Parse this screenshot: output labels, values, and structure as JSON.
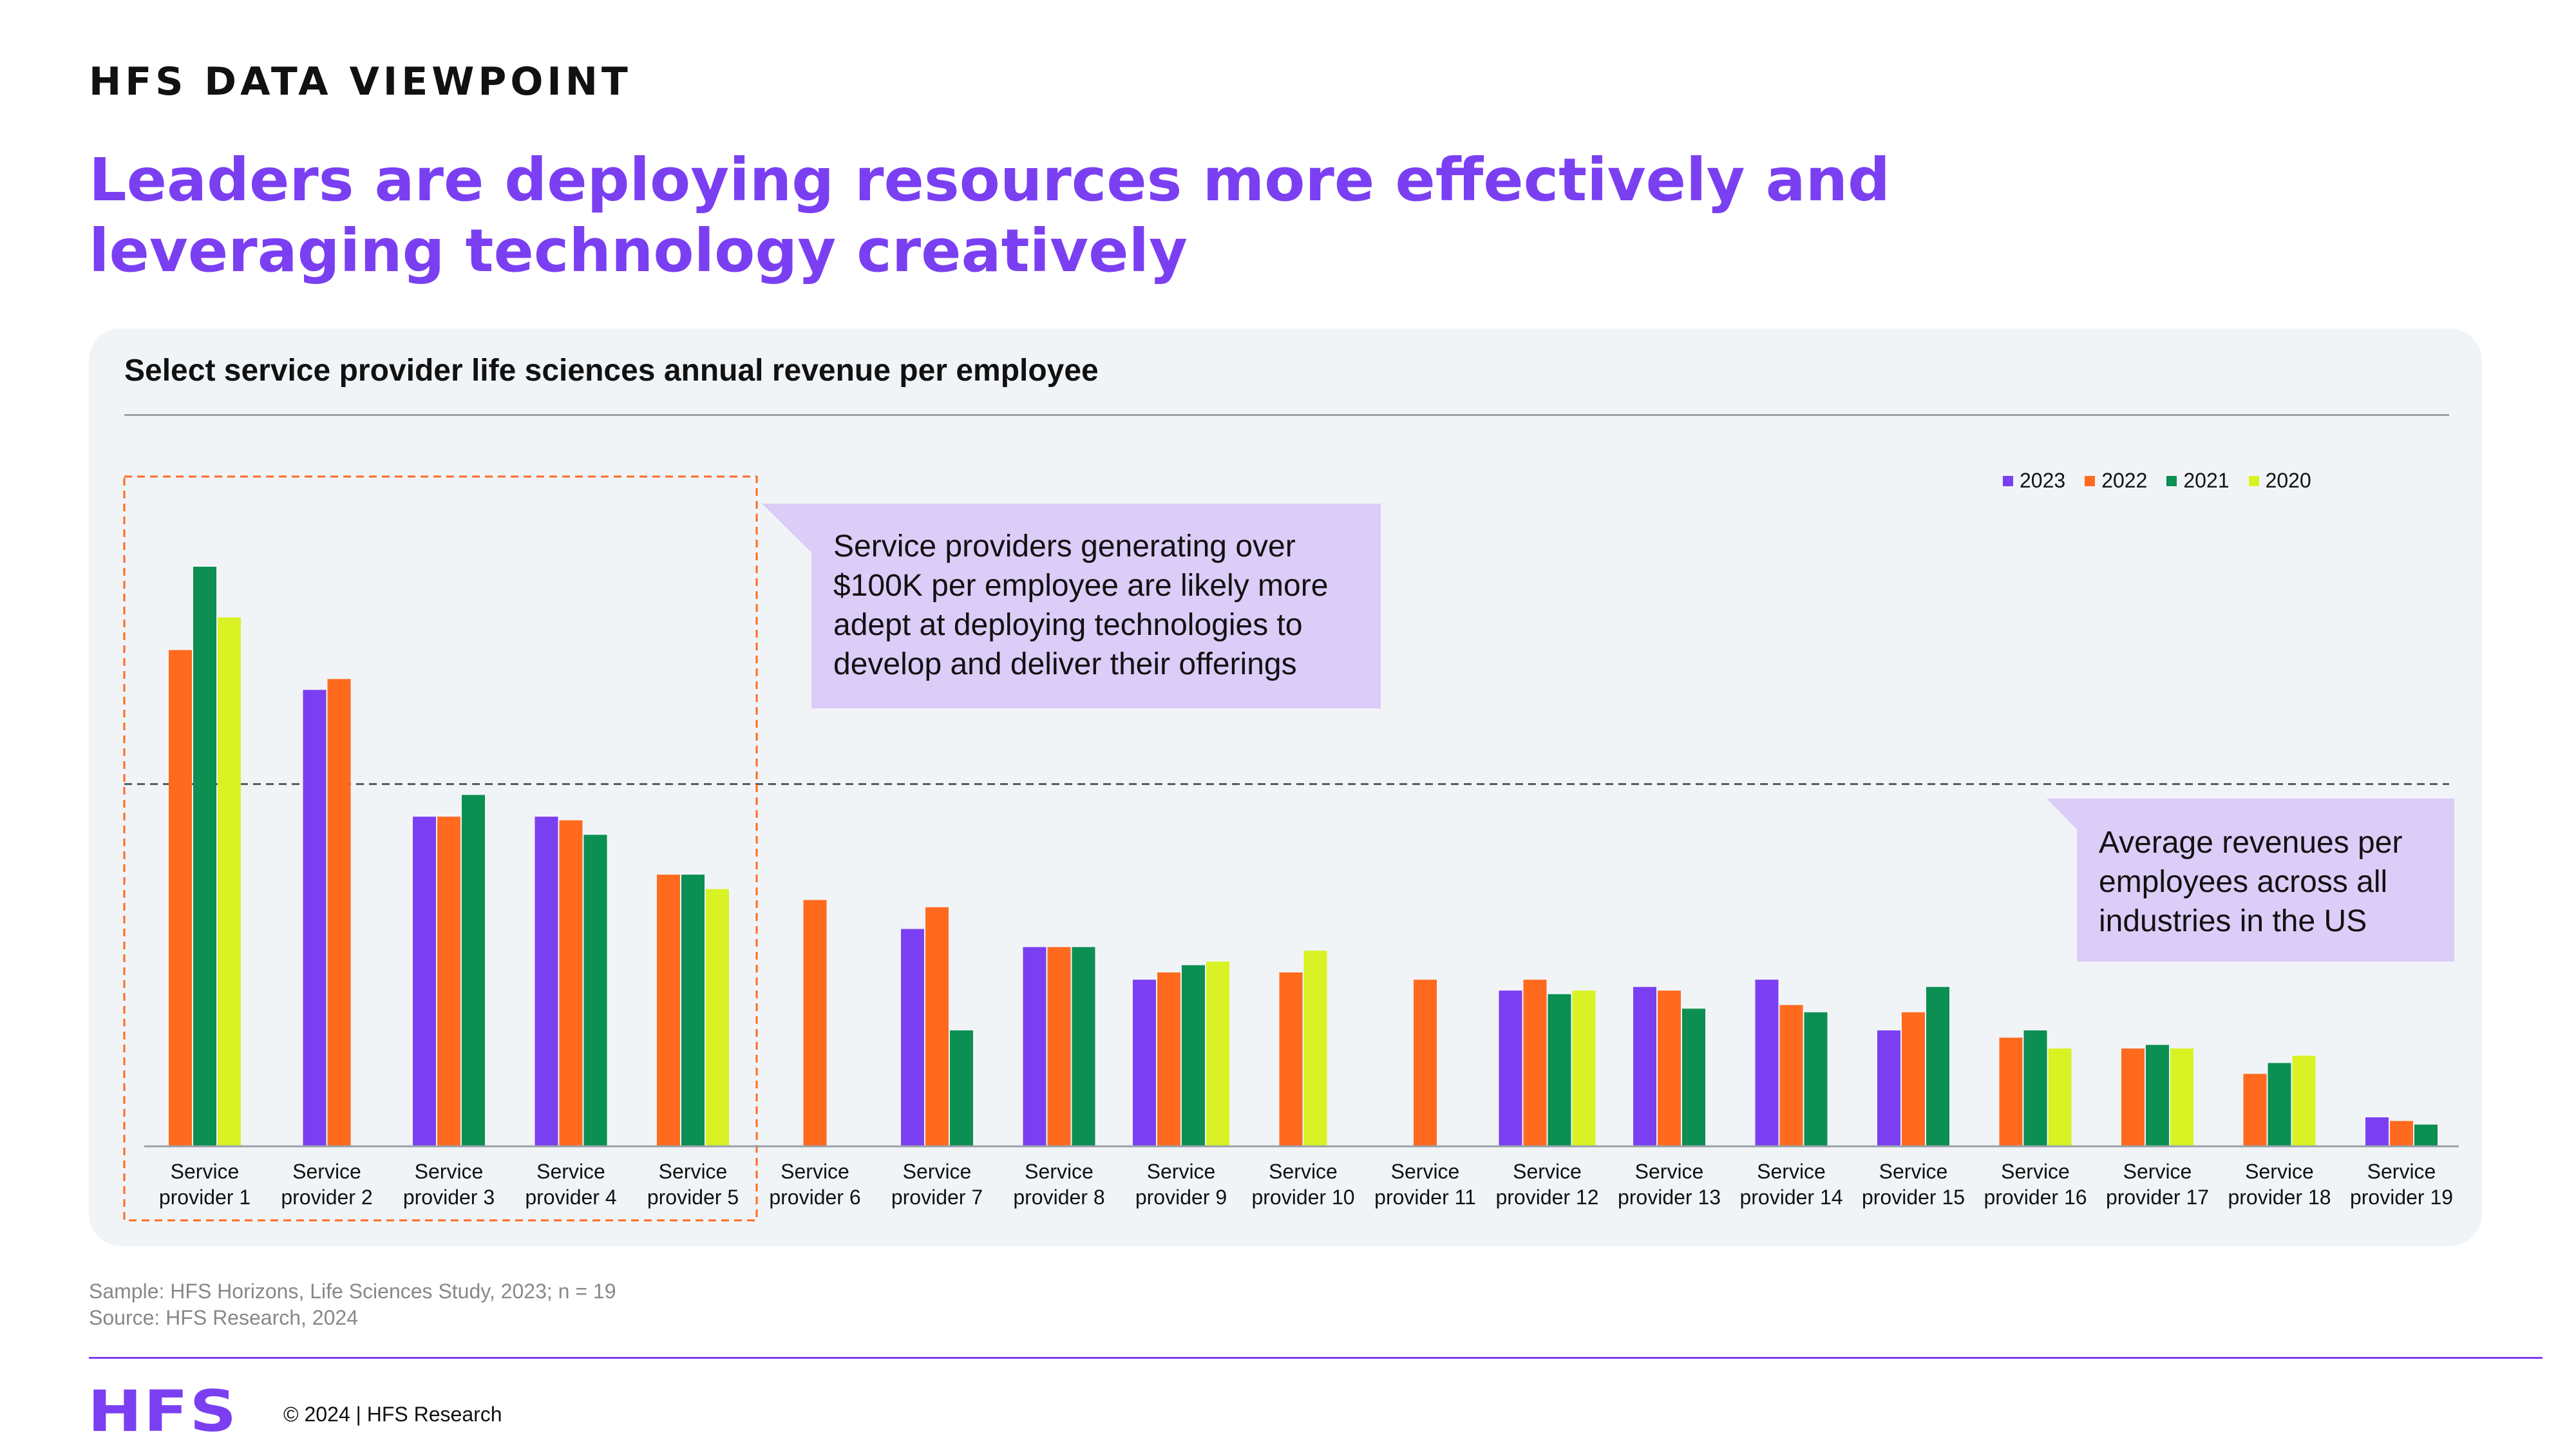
{
  "header": {
    "eyebrow": "HFS DATA VIEWPOINT",
    "headline_line1": "Leaders are deploying resources more effectively and",
    "headline_line2": "leveraging technology creatively"
  },
  "colors": {
    "accent": "#7b3ff2",
    "series_2023": "#7b3ff2",
    "series_2022": "#ff6a1f",
    "series_2021": "#0b8f52",
    "series_2020": "#d9f224",
    "highlight_box": "#ff6a1f",
    "callout_bg": "#dcccf8",
    "panel_bg": "#f1f4f7"
  },
  "chart_data": {
    "type": "bar",
    "title": "Select service provider life sciences annual revenue per employee",
    "xlabel": "",
    "ylabel": "",
    "grid": false,
    "legend_position": "top-right",
    "y_axis_labels_visible": false,
    "categories": [
      "Service provider 1",
      "Service provider 2",
      "Service provider 3",
      "Service provider 4",
      "Service provider 5",
      "Service provider 6",
      "Service provider 7",
      "Service provider 8",
      "Service provider 9",
      "Service provider 10",
      "Service provider 11",
      "Service provider 12",
      "Service provider 13",
      "Service provider 14",
      "Service provider 15",
      "Service provider 16",
      "Service provider 17",
      "Service provider 18",
      "Service provider 19"
    ],
    "series": [
      {
        "name": "2023",
        "color": "#7b3ff2",
        "values": [
          null,
          126,
          91,
          91,
          null,
          null,
          60,
          55,
          46,
          null,
          null,
          43,
          44,
          46,
          32,
          null,
          null,
          null,
          8
        ]
      },
      {
        "name": "2022",
        "color": "#ff6a1f",
        "values": [
          137,
          129,
          91,
          90,
          75,
          68,
          66,
          55,
          48,
          48,
          46,
          46,
          43,
          39,
          37,
          30,
          27,
          20,
          7
        ]
      },
      {
        "name": "2021",
        "color": "#0b8f52",
        "values": [
          160,
          null,
          97,
          86,
          75,
          null,
          32,
          55,
          50,
          null,
          null,
          42,
          38,
          37,
          44,
          32,
          28,
          23,
          6
        ]
      },
      {
        "name": "2020",
        "color": "#d9f224",
        "values": [
          146,
          null,
          null,
          null,
          71,
          null,
          null,
          null,
          51,
          54,
          null,
          43,
          null,
          null,
          null,
          27,
          27,
          25,
          null
        ]
      }
    ],
    "reference_line": {
      "value": 100,
      "style": "dashed"
    },
    "highlight_group": [
      "Service provider 1",
      "Service provider 5"
    ],
    "ylim": [
      0,
      180
    ]
  },
  "callouts": {
    "top_lines": [
      "Service providers generating over",
      "$100K per employee are likely more",
      "adept at deploying technologies to",
      "develop and deliver their offerings"
    ],
    "average_lines": [
      "Average revenues per",
      "employees across all",
      "industries in the US"
    ]
  },
  "footer": {
    "sample": "Sample: HFS Horizons, Life Sciences Study, 2023; n = 19",
    "source": "Source: HFS Research, 2024",
    "logo": "HFS",
    "copyright": "© 2024 | HFS Research"
  }
}
